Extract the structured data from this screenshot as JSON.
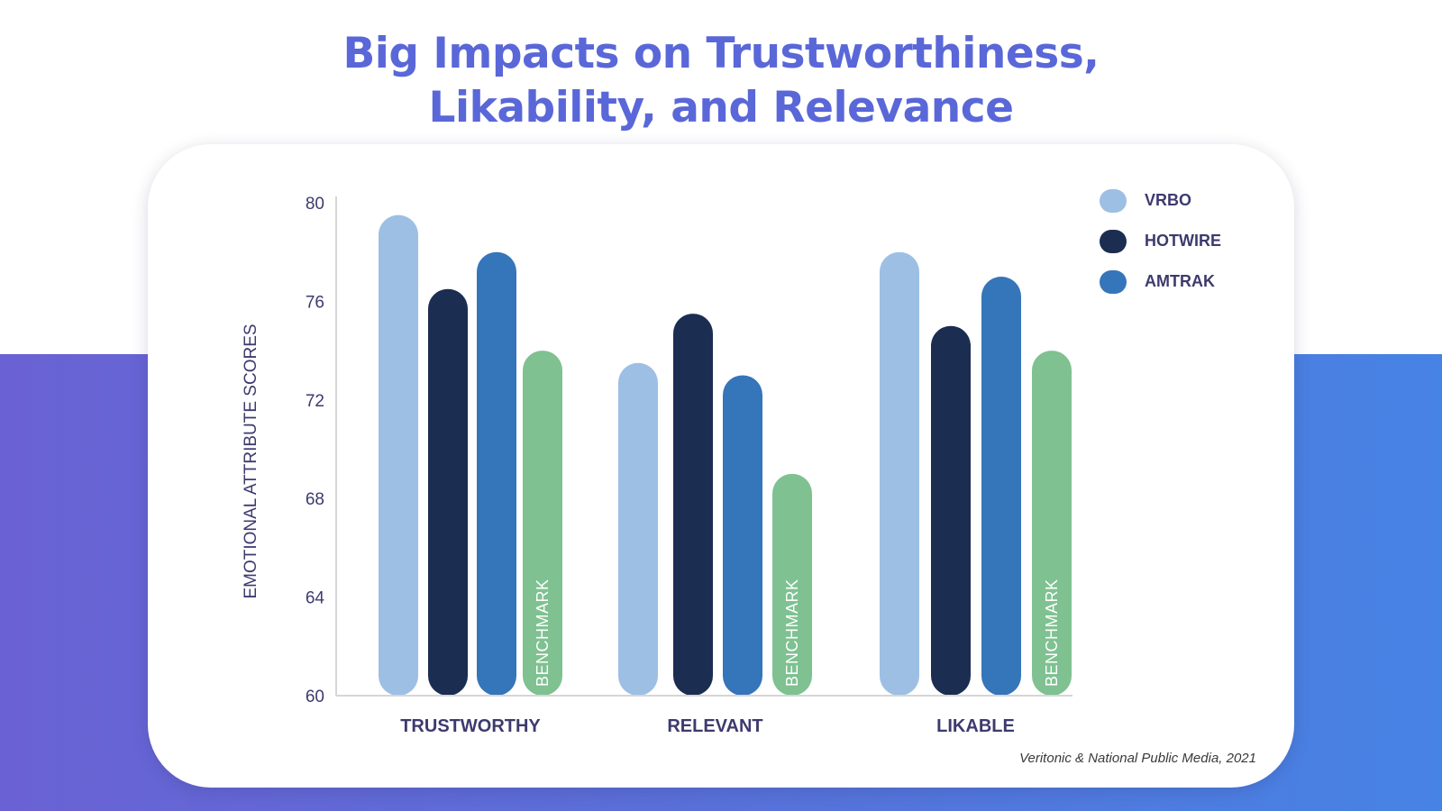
{
  "title": {
    "line1": "Big Impacts on Trustworthiness,",
    "line2": "Likability, and Relevance"
  },
  "colors": {
    "title": "#5a67d8",
    "text": "#3d3a6e",
    "vrbo": "#9dbfe4",
    "hotwire": "#1c2d52",
    "amtrak": "#3575b9",
    "benchmark": "#7fc191"
  },
  "chart_data": {
    "type": "bar",
    "title": "Big Impacts on Trustworthiness, Likability, and Relevance",
    "xlabel": "",
    "ylabel": "EMOTIONAL ATTRIBUTE SCORES",
    "ylim": [
      60,
      80
    ],
    "yticks": [
      60,
      64,
      68,
      72,
      76,
      80
    ],
    "categories": [
      "TRUSTWORTHY",
      "RELEVANT",
      "LIKABLE"
    ],
    "series": [
      {
        "name": "VRBO",
        "color_key": "vrbo",
        "values": [
          79.5,
          73.5,
          78.0
        ]
      },
      {
        "name": "HOTWIRE",
        "color_key": "hotwire",
        "values": [
          76.5,
          75.5,
          75.0
        ]
      },
      {
        "name": "AMTRAK",
        "color_key": "amtrak",
        "values": [
          78.0,
          73.0,
          77.0
        ]
      },
      {
        "name": "BENCHMARK",
        "color_key": "benchmark",
        "values": [
          74.0,
          69.0,
          74.0
        ],
        "bar_label": "BENCHMARK"
      }
    ],
    "legend": [
      {
        "label": "VRBO",
        "color_key": "vrbo"
      },
      {
        "label": "HOTWIRE",
        "color_key": "hotwire"
      },
      {
        "label": "AMTRAK",
        "color_key": "amtrak"
      }
    ],
    "legend_position": "top-right",
    "grid": false
  },
  "source": "Veritonic & National Public Media, 2021"
}
